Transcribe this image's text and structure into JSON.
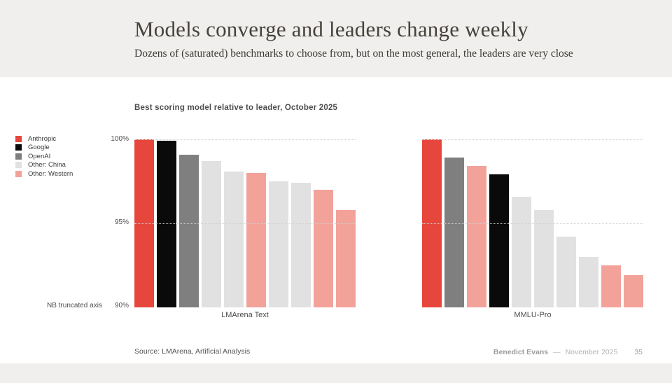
{
  "header": {
    "title": "Models converge and leaders change weekly",
    "subtitle": "Dozens of (saturated) benchmarks to choose from, but on the most general, the leaders are very close"
  },
  "chart_data": {
    "type": "bar",
    "title": "Best scoring model relative to leader, October 2025",
    "ylabel": "",
    "ylim": [
      90,
      100
    ],
    "yticks": [
      "100%",
      "95%",
      "90%"
    ],
    "axis_note": "NB truncated axis",
    "grid": "dotted horizontal at 100% and 95%",
    "legend_position": "left",
    "legend": [
      {
        "label": "Anthropic",
        "color": "#e7463c"
      },
      {
        "label": "Google",
        "color": "#0a0a0a"
      },
      {
        "label": "OpenAI",
        "color": "#7f7f7f"
      },
      {
        "label": "Other: China",
        "color": "#e1e1e1"
      },
      {
        "label": "Other: Western",
        "color": "#f3a29a"
      }
    ],
    "charts": [
      {
        "category_label": "LMArena Text",
        "bars": [
          {
            "group": "Anthropic",
            "value": 100.0
          },
          {
            "group": "Google",
            "value": 99.9
          },
          {
            "group": "OpenAI",
            "value": 99.1
          },
          {
            "group": "Other: China",
            "value": 98.7
          },
          {
            "group": "Other: China",
            "value": 98.1
          },
          {
            "group": "Other: Western",
            "value": 98.0
          },
          {
            "group": "Other: China",
            "value": 97.5
          },
          {
            "group": "Other: China",
            "value": 97.4
          },
          {
            "group": "Other: Western",
            "value": 97.0
          },
          {
            "group": "Other: Western",
            "value": 95.8
          }
        ]
      },
      {
        "category_label": "MMLU-Pro",
        "bars": [
          {
            "group": "Anthropic",
            "value": 100.0
          },
          {
            "group": "OpenAI",
            "value": 98.9
          },
          {
            "group": "Other: Western",
            "value": 98.4
          },
          {
            "group": "Google",
            "value": 97.9
          },
          {
            "group": "Other: China",
            "value": 96.6
          },
          {
            "group": "Other: China",
            "value": 95.8
          },
          {
            "group": "Other: China",
            "value": 94.2
          },
          {
            "group": "Other: China",
            "value": 93.0
          },
          {
            "group": "Other: Western",
            "value": 92.5
          },
          {
            "group": "Other: Western",
            "value": 91.9
          }
        ]
      }
    ]
  },
  "footer": {
    "source": "Source: LMArena, Artificial Analysis",
    "author": "Benedict Evans",
    "separator": "—",
    "date": "November 2025",
    "page": "35"
  }
}
